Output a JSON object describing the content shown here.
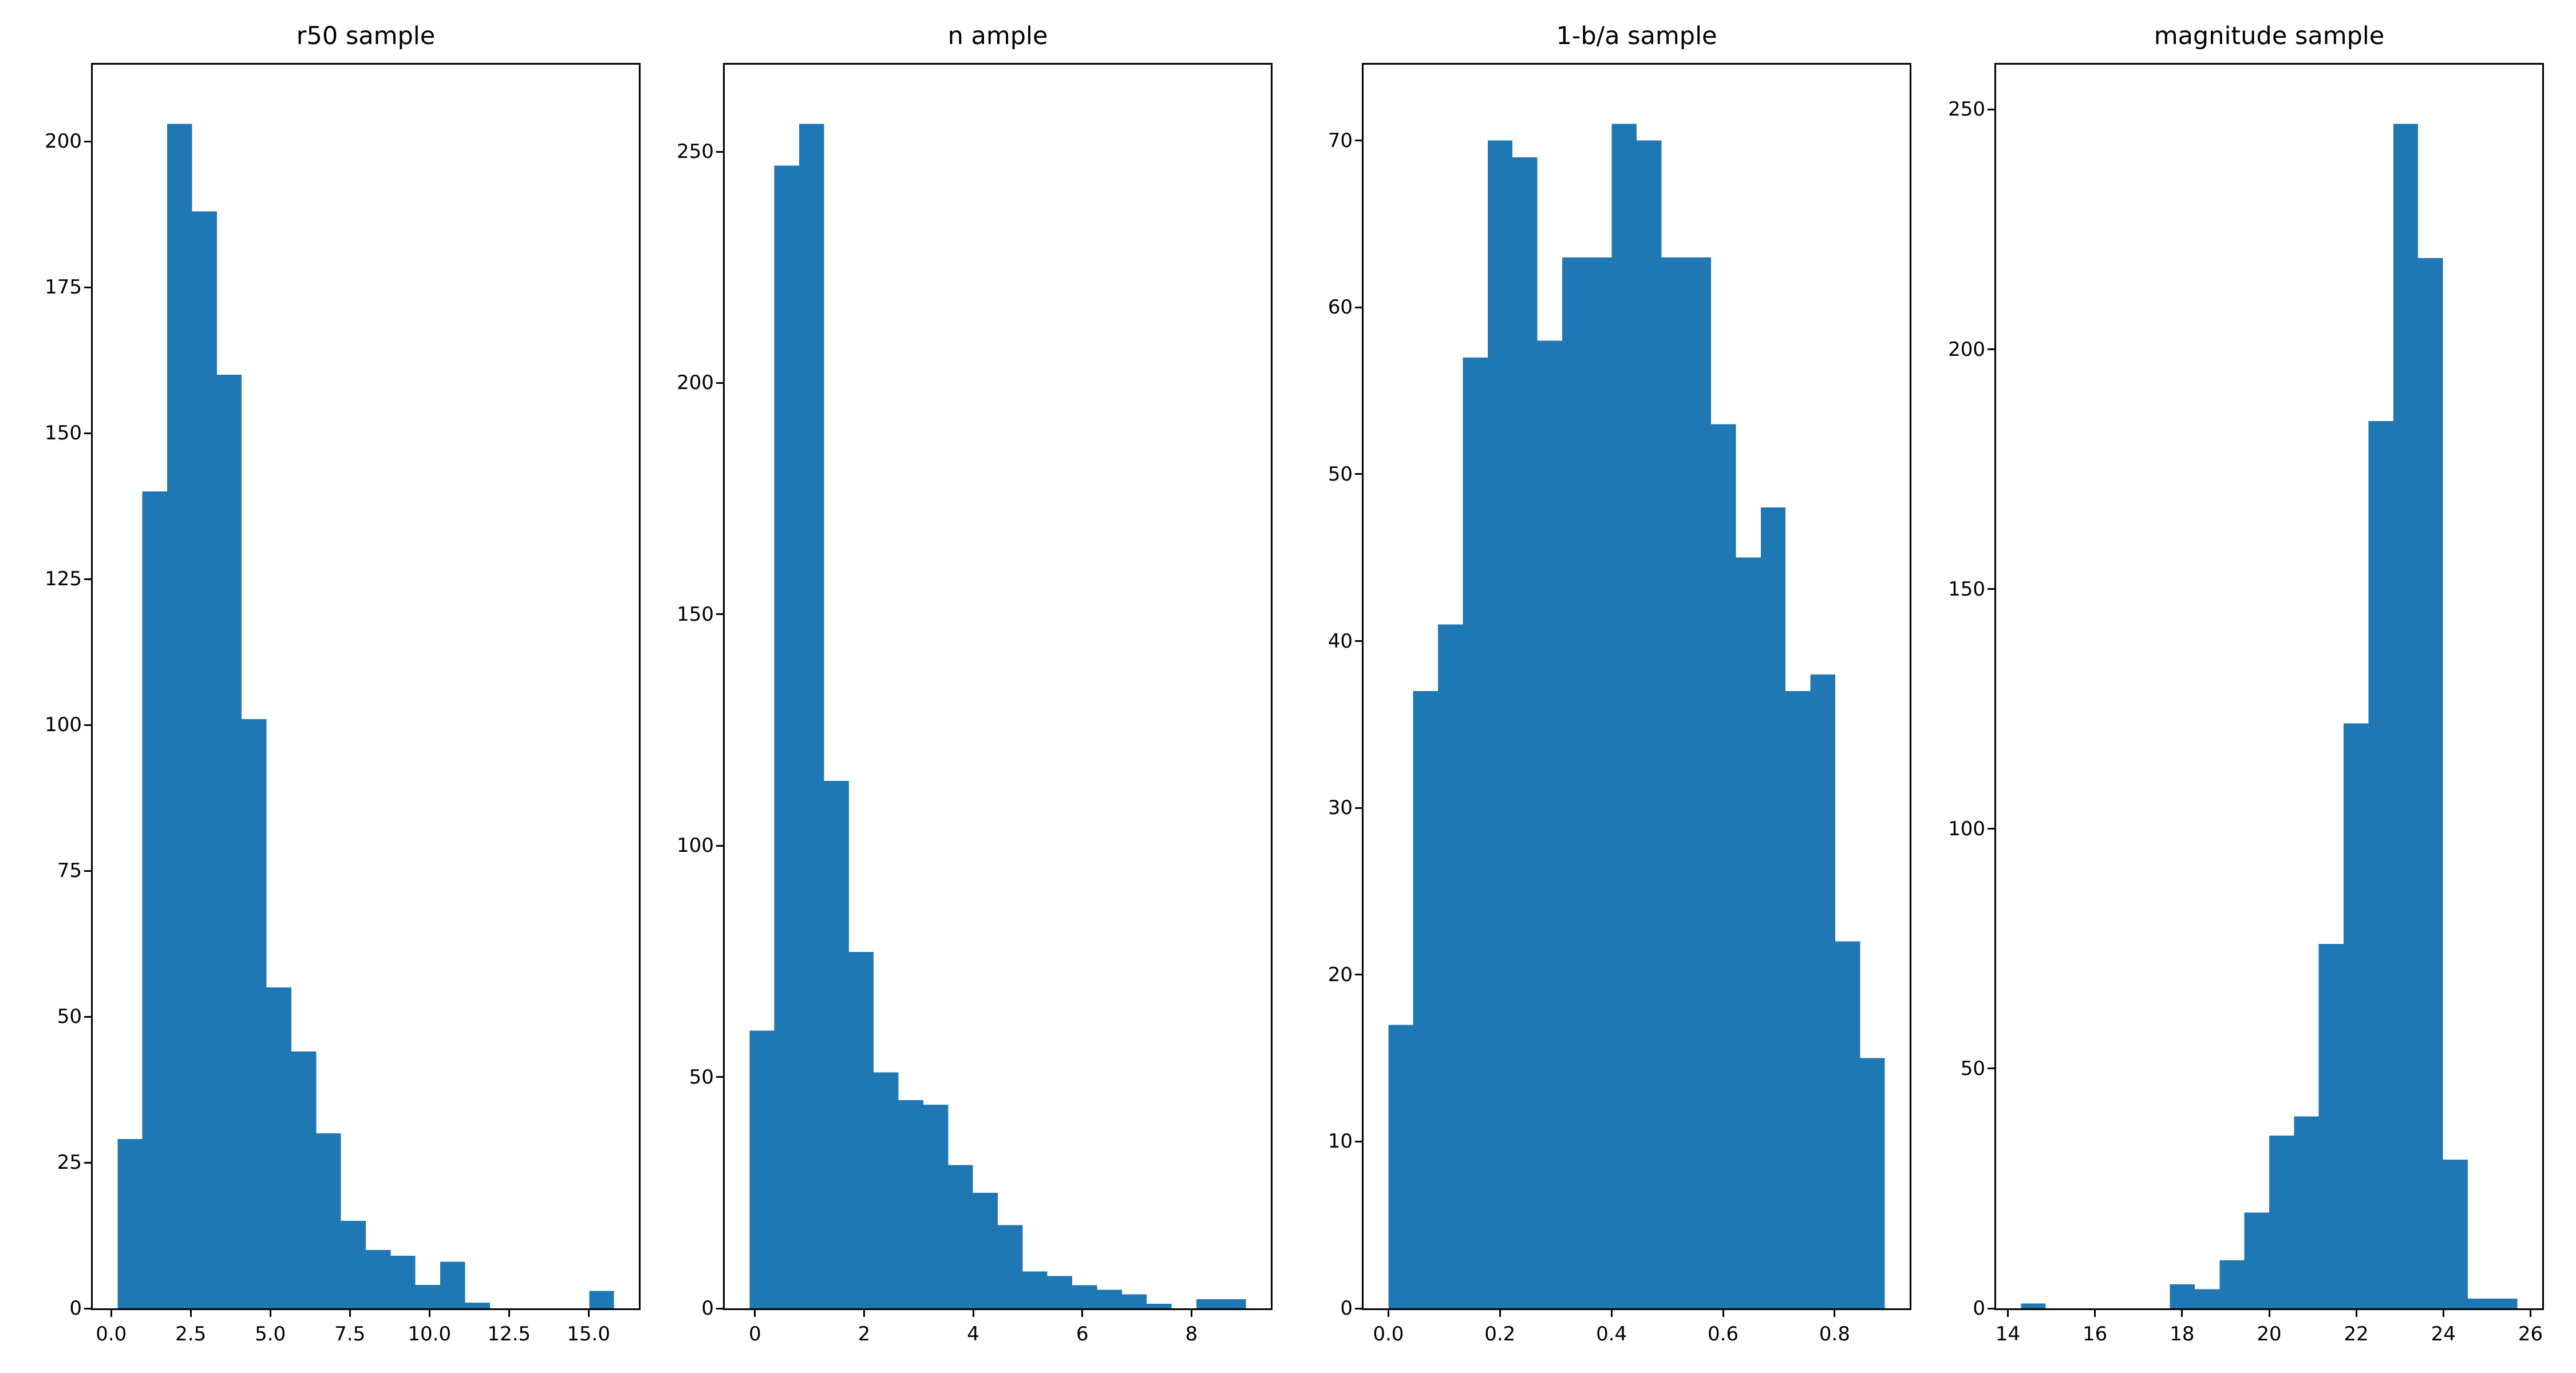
{
  "figure": {
    "background_color": "#ffffff",
    "bar_color": "#1f77b4",
    "axis_color": "#000000",
    "n_panels": 4
  },
  "chart_data": [
    {
      "type": "bar",
      "subtype": "histogram",
      "title": "r50 sample",
      "xlabel": "",
      "ylabel": "",
      "grid": false,
      "legend": null,
      "bin_start": 0.2,
      "bin_width": 0.78,
      "counts": [
        29,
        140,
        203,
        188,
        160,
        101,
        55,
        44,
        30,
        15,
        10,
        9,
        4,
        8,
        1,
        0,
        0,
        0,
        0,
        3
      ],
      "xlim": [
        -0.58,
        16.58
      ],
      "ylim": [
        0,
        213.15
      ],
      "xtick_values": [
        0.0,
        2.5,
        5.0,
        7.5,
        10.0,
        12.5,
        15.0
      ],
      "xtick_labels": [
        "0.0",
        "2.5",
        "5.0",
        "7.5",
        "10.0",
        "12.5",
        "15.0"
      ],
      "ytick_values": [
        0,
        25,
        50,
        75,
        100,
        125,
        150,
        175,
        200
      ],
      "ytick_labels": [
        "0",
        "25",
        "50",
        "75",
        "100",
        "125",
        "150",
        "175",
        "200"
      ]
    },
    {
      "type": "bar",
      "subtype": "histogram",
      "title": "n ample",
      "xlabel": "",
      "ylabel": "",
      "grid": false,
      "legend": null,
      "bin_start": -0.1,
      "bin_width": 0.455,
      "counts": [
        60,
        247,
        256,
        114,
        77,
        51,
        45,
        44,
        31,
        25,
        18,
        8,
        7,
        5,
        4,
        3,
        1,
        0,
        2,
        2
      ],
      "xlim": [
        -0.555,
        9.455
      ],
      "ylim": [
        0,
        268.8
      ],
      "xtick_values": [
        0,
        2,
        4,
        6,
        8
      ],
      "xtick_labels": [
        "0",
        "2",
        "4",
        "6",
        "8"
      ],
      "ytick_values": [
        0,
        50,
        100,
        150,
        200,
        250
      ],
      "ytick_labels": [
        "0",
        "50",
        "100",
        "150",
        "200",
        "250"
      ]
    },
    {
      "type": "bar",
      "subtype": "histogram",
      "title": "1-b/a sample",
      "xlabel": "",
      "ylabel": "",
      "grid": false,
      "legend": null,
      "bin_start": 0.0,
      "bin_width": 0.0445,
      "counts": [
        17,
        37,
        41,
        57,
        70,
        69,
        58,
        63,
        63,
        71,
        70,
        63,
        63,
        53,
        45,
        48,
        37,
        38,
        22,
        15
      ],
      "xlim": [
        -0.0445,
        0.9345
      ],
      "ylim": [
        0,
        74.55
      ],
      "xtick_values": [
        0.0,
        0.2,
        0.4,
        0.6,
        0.8
      ],
      "xtick_labels": [
        "0.0",
        "0.2",
        "0.4",
        "0.6",
        "0.8"
      ],
      "ytick_values": [
        0,
        10,
        20,
        30,
        40,
        50,
        60,
        70
      ],
      "ytick_labels": [
        "0",
        "10",
        "20",
        "30",
        "40",
        "50",
        "60",
        "70"
      ]
    },
    {
      "type": "bar",
      "subtype": "histogram",
      "title": "magnitude sample",
      "xlabel": "",
      "ylabel": "",
      "grid": false,
      "legend": null,
      "bin_start": 14.3,
      "bin_width": 0.57,
      "counts": [
        1,
        0,
        0,
        0,
        0,
        0,
        5,
        4,
        10,
        20,
        36,
        40,
        76,
        122,
        185,
        247,
        219,
        31,
        2,
        2
      ],
      "xlim": [
        13.73,
        26.27
      ],
      "ylim": [
        0,
        259.35
      ],
      "xtick_values": [
        14,
        16,
        18,
        20,
        22,
        24,
        26
      ],
      "xtick_labels": [
        "14",
        "16",
        "18",
        "20",
        "22",
        "24",
        "26"
      ],
      "ytick_values": [
        0,
        50,
        100,
        150,
        200,
        250
      ],
      "ytick_labels": [
        "0",
        "50",
        "100",
        "150",
        "200",
        "250"
      ]
    }
  ]
}
